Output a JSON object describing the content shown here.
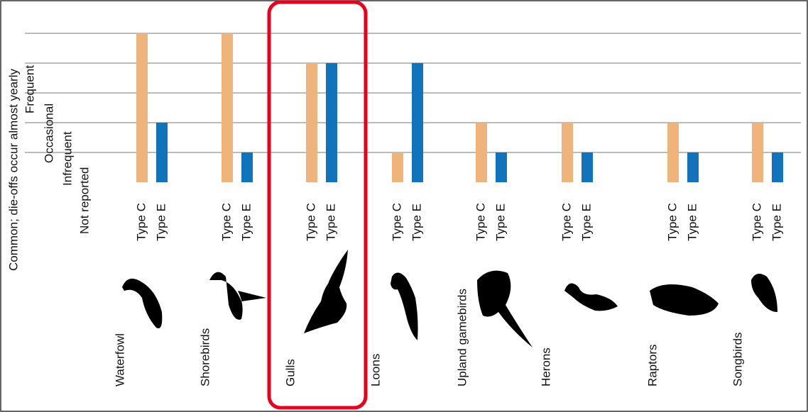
{
  "chart_data": {
    "type": "bar",
    "categories": [
      "Waterfowl",
      "Shorebirds",
      "Gulls",
      "Loons",
      "Upland gamebirds",
      "Herons",
      "Raptors",
      "Songbirds"
    ],
    "series": [
      {
        "name": "Type C",
        "color": "#eeb47c",
        "values": [
          5,
          5,
          4,
          1,
          2,
          2,
          2,
          2
        ]
      },
      {
        "name": "Type E",
        "color": "#1273bd",
        "values": [
          2,
          1,
          4,
          4,
          1,
          1,
          1,
          1
        ]
      }
    ],
    "ylim": [
      0,
      5
    ],
    "yticks": [
      {
        "value": 1,
        "label": "Not reported"
      },
      {
        "value": 2,
        "label": "Infrequent"
      },
      {
        "value": 3,
        "label": "Occasional"
      },
      {
        "value": 4,
        "label": "Frequent"
      },
      {
        "value": 5,
        "label": "Common; die-offs occur almost yearly"
      }
    ],
    "grid": true
  }
}
